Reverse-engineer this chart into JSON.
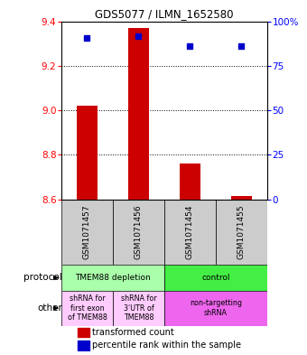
{
  "title": "GDS5077 / ILMN_1652580",
  "samples": [
    "GSM1071457",
    "GSM1071456",
    "GSM1071454",
    "GSM1071455"
  ],
  "bar_values": [
    9.02,
    9.37,
    8.76,
    8.615
  ],
  "bar_base": 8.6,
  "dot_values": [
    9.325,
    9.335,
    9.29,
    9.29
  ],
  "ylim": [
    8.6,
    9.4
  ],
  "yticks_left": [
    8.6,
    8.8,
    9.0,
    9.2,
    9.4
  ],
  "yticks_right": [
    0,
    25,
    50,
    75,
    100
  ],
  "bar_color": "#cc0000",
  "dot_color": "#0000cc",
  "sample_box_color": "#cccccc",
  "protocol_row": [
    {
      "label": "TMEM88 depletion",
      "span": [
        0,
        2
      ],
      "color": "#aaffaa"
    },
    {
      "label": "control",
      "span": [
        2,
        4
      ],
      "color": "#44ee44"
    }
  ],
  "other_row": [
    {
      "label": "shRNA for\nfirst exon\nof TMEM88",
      "span": [
        0,
        1
      ],
      "color": "#ffccff"
    },
    {
      "label": "shRNA for\n3'UTR of\nTMEM88",
      "span": [
        1,
        2
      ],
      "color": "#ffccff"
    },
    {
      "label": "non-targetting\nshRNA",
      "span": [
        2,
        4
      ],
      "color": "#ee66ee"
    }
  ],
  "legend_red_label": "transformed count",
  "legend_blue_label": "percentile rank within the sample",
  "protocol_label": "protocol",
  "other_label": "other"
}
